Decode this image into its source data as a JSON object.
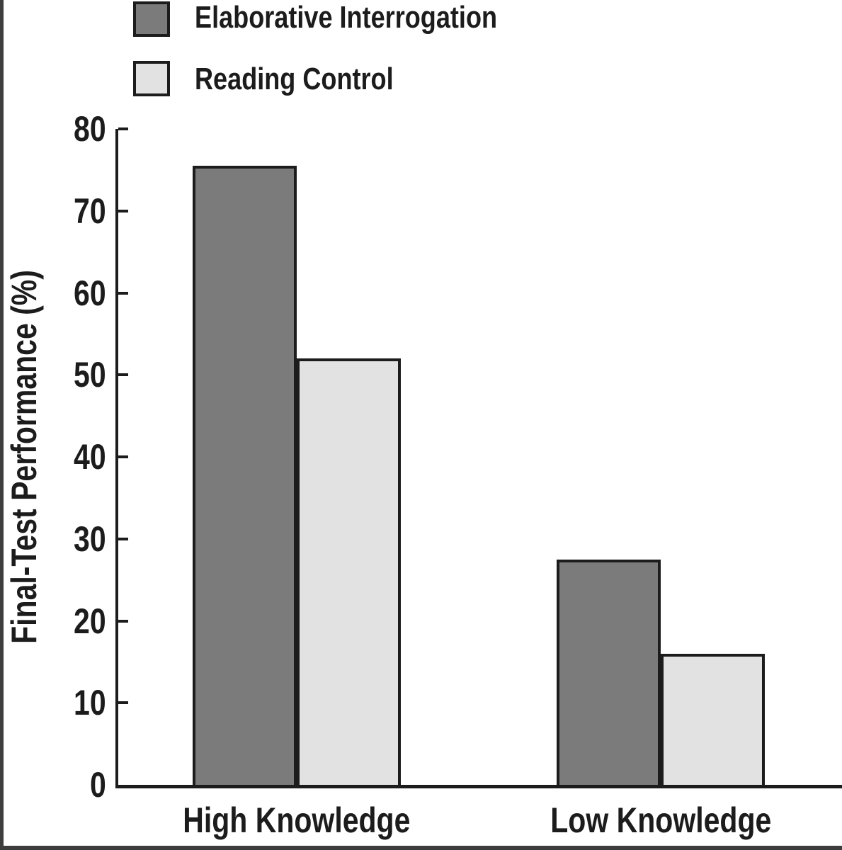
{
  "figure": {
    "background": "#ffffff",
    "page_border_color": "#3d3d3d",
    "axis_color": "#1c1c1c"
  },
  "legend": {
    "position": "top-left",
    "items": [
      {
        "label": "Elaborative Interrogation",
        "swatch_color": "#7b7b7b"
      },
      {
        "label": "Reading Control",
        "swatch_color": "#e2e2e2"
      }
    ]
  },
  "chart_data": {
    "type": "bar",
    "ylabel": "Final-Test Performance (%)",
    "xlabel": "",
    "categories": [
      "High Knowledge",
      "Low Knowledge"
    ],
    "series": [
      {
        "name": "Elaborative Interrogation",
        "color": "#7b7b7b",
        "values": [
          75.5,
          27.5
        ]
      },
      {
        "name": "Reading Control",
        "color": "#e2e2e2",
        "values": [
          52,
          16
        ]
      }
    ],
    "ylim": [
      0,
      80
    ],
    "yticks": [
      0,
      10,
      20,
      30,
      40,
      50,
      60,
      70,
      80
    ],
    "grid": false,
    "legend_position": "top-left",
    "bar_outline_color": "#1c1c1c"
  }
}
